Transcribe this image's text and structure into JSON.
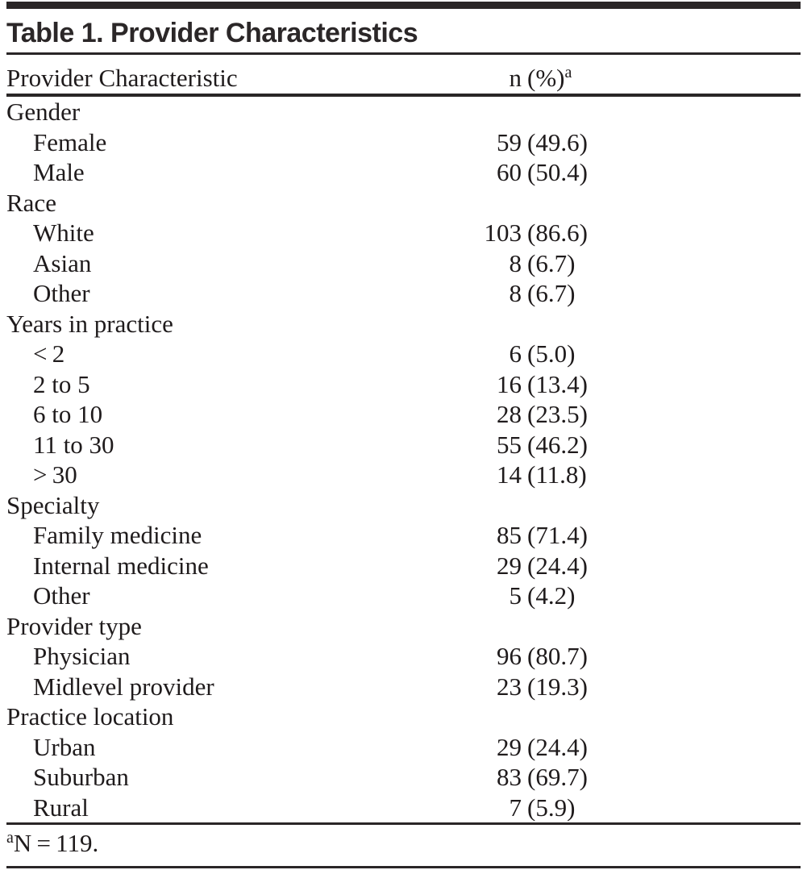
{
  "table": {
    "title": "Table 1. Provider Characteristics",
    "columns": {
      "characteristic": "Provider Characteristic",
      "n": "n",
      "pct": "(%)",
      "footnote_marker": "a"
    },
    "rows": [
      {
        "type": "category",
        "label": "Gender",
        "n": "",
        "pct": ""
      },
      {
        "type": "item",
        "label": "Female",
        "n": "59",
        "pct": "(49.6)"
      },
      {
        "type": "item",
        "label": "Male",
        "n": "60",
        "pct": "(50.4)"
      },
      {
        "type": "category",
        "label": "Race",
        "n": "",
        "pct": ""
      },
      {
        "type": "item",
        "label": "White",
        "n": "103",
        "pct": "(86.6)"
      },
      {
        "type": "item",
        "label": "Asian",
        "n": "8",
        "pct": "(6.7)"
      },
      {
        "type": "item",
        "label": "Other",
        "n": "8",
        "pct": "(6.7)"
      },
      {
        "type": "category",
        "label": "Years in practice",
        "n": "",
        "pct": ""
      },
      {
        "type": "item",
        "label": "< 2",
        "n": "6",
        "pct": "(5.0)"
      },
      {
        "type": "item",
        "label": "2 to 5",
        "n": "16",
        "pct": "(13.4)"
      },
      {
        "type": "item",
        "label": "6 to 10",
        "n": "28",
        "pct": "(23.5)"
      },
      {
        "type": "item",
        "label": "11 to 30",
        "n": "55",
        "pct": "(46.2)"
      },
      {
        "type": "item",
        "label": "> 30",
        "n": "14",
        "pct": "(11.8)"
      },
      {
        "type": "category",
        "label": "Specialty",
        "n": "",
        "pct": ""
      },
      {
        "type": "item",
        "label": "Family medicine",
        "n": "85",
        "pct": "(71.4)"
      },
      {
        "type": "item",
        "label": "Internal medicine",
        "n": "29",
        "pct": "(24.4)"
      },
      {
        "type": "item",
        "label": "Other",
        "n": "5",
        "pct": "(4.2)"
      },
      {
        "type": "category",
        "label": "Provider type",
        "n": "",
        "pct": ""
      },
      {
        "type": "item",
        "label": "Physician",
        "n": "96",
        "pct": "(80.7)"
      },
      {
        "type": "item",
        "label": "Midlevel provider",
        "n": "23",
        "pct": "(19.3)"
      },
      {
        "type": "category",
        "label": "Practice location",
        "n": "",
        "pct": ""
      },
      {
        "type": "item",
        "label": "Urban",
        "n": "29",
        "pct": "(24.4)"
      },
      {
        "type": "item",
        "label": "Suburban",
        "n": "83",
        "pct": "(69.7)"
      },
      {
        "type": "item",
        "label": "Rural",
        "n": "7",
        "pct": "(5.9)"
      }
    ],
    "footnote": {
      "marker": "a",
      "text": "N = 119."
    }
  },
  "colors": {
    "text": "#1f1b1c",
    "title": "#2b2728",
    "rule": "#2a2627",
    "background": "#ffffff"
  }
}
